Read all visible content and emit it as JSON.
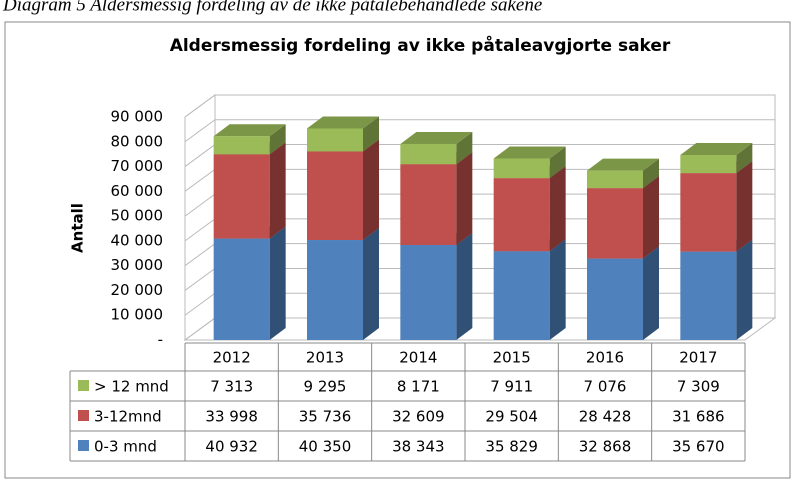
{
  "caption": "Diagram 5 Aldersmessig fordeling av de ikke påtalebehandlede sakene",
  "chart_data": {
    "type": "bar3d_stacked",
    "title": "Aldersmessig fordeling av ikke påtaleavgjorte saker",
    "ylabel": "Antall",
    "categories": [
      "2012",
      "2013",
      "2014",
      "2015",
      "2016",
      "2017"
    ],
    "series": [
      {
        "name": "0-3 mnd",
        "color": "#4f81bd",
        "values": [
          40932,
          40350,
          38343,
          35829,
          32868,
          35670
        ],
        "value_labels": [
          "40 932",
          "40 350",
          "38 343",
          "35 829",
          "32 868",
          "35 670"
        ]
      },
      {
        "name": "3-12mnd",
        "color": "#c0504d",
        "values": [
          33998,
          35736,
          32609,
          29504,
          28428,
          31686
        ],
        "value_labels": [
          "33 998",
          "35 736",
          "32 609",
          "29 504",
          "28 428",
          "31 686"
        ]
      },
      {
        "name": "> 12 mnd",
        "color": "#9bbb59",
        "values": [
          7313,
          9295,
          8171,
          7911,
          7076,
          7309
        ],
        "value_labels": [
          "7 313",
          "9 295",
          "8 171",
          "7 911",
          "7 076",
          "7 309"
        ]
      }
    ],
    "ylim": [
      0,
      90000
    ],
    "yticks": [
      {
        "value": 0,
        "label": "-"
      },
      {
        "value": 10000,
        "label": "10 000"
      },
      {
        "value": 20000,
        "label": "20 000"
      },
      {
        "value": 30000,
        "label": "30 000"
      },
      {
        "value": 40000,
        "label": "40 000"
      },
      {
        "value": 50000,
        "label": "50 000"
      },
      {
        "value": 60000,
        "label": "60 000"
      },
      {
        "value": 70000,
        "label": "70 000"
      },
      {
        "value": 80000,
        "label": "80 000"
      },
      {
        "value": 90000,
        "label": "90 000"
      }
    ],
    "grid": true,
    "data_table": true
  }
}
